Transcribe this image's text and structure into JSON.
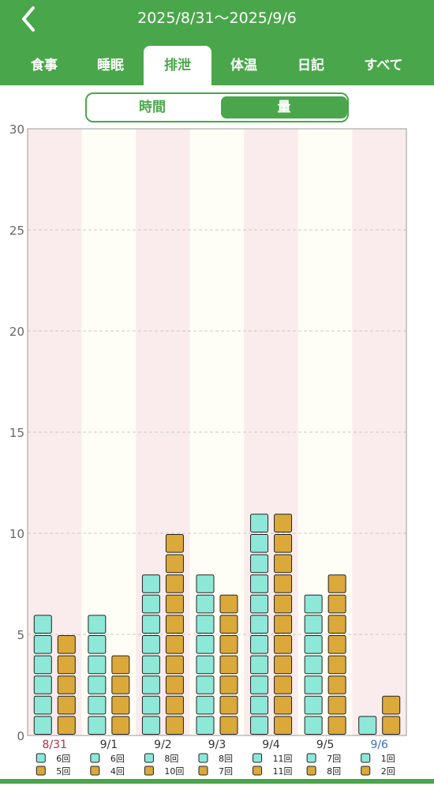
{
  "header": {
    "date_range": "2025/8/31〜2025/9/6",
    "tabs": [
      {
        "label": "食事"
      },
      {
        "label": "睡眠"
      },
      {
        "label": "排泄"
      },
      {
        "label": "体温"
      },
      {
        "label": "日記"
      },
      {
        "label": "すべて"
      }
    ],
    "active_tab": 2
  },
  "toggle": {
    "left_label": "時間",
    "right_label": "量",
    "selected": "right"
  },
  "colors": {
    "accent": "#4aa64a",
    "series1": "#8de8d8",
    "series2": "#dba93a",
    "weekend_bg": "#faecec",
    "weekday_bg": "#fffef6",
    "sunday_label": "#b03040",
    "saturday_label": "#3a70c0"
  },
  "chart_data": {
    "type": "bar",
    "categories": [
      "8/31",
      "9/1",
      "9/2",
      "9/3",
      "9/4",
      "9/5",
      "9/6"
    ],
    "series": [
      {
        "values": [
          6,
          6,
          8,
          8,
          11,
          7,
          1
        ],
        "labels": [
          "6回",
          "6回",
          "8回",
          "8回",
          "11回",
          "7回",
          "1回"
        ]
      },
      {
        "values": [
          5,
          4,
          10,
          7,
          11,
          8,
          2
        ],
        "labels": [
          "5回",
          "4回",
          "10回",
          "7回",
          "11回",
          "8回",
          "2回"
        ]
      }
    ],
    "yticks": [
      "0",
      "5",
      "10",
      "15",
      "20",
      "25",
      "30"
    ],
    "ylim": [
      0,
      30
    ],
    "grid": true
  }
}
